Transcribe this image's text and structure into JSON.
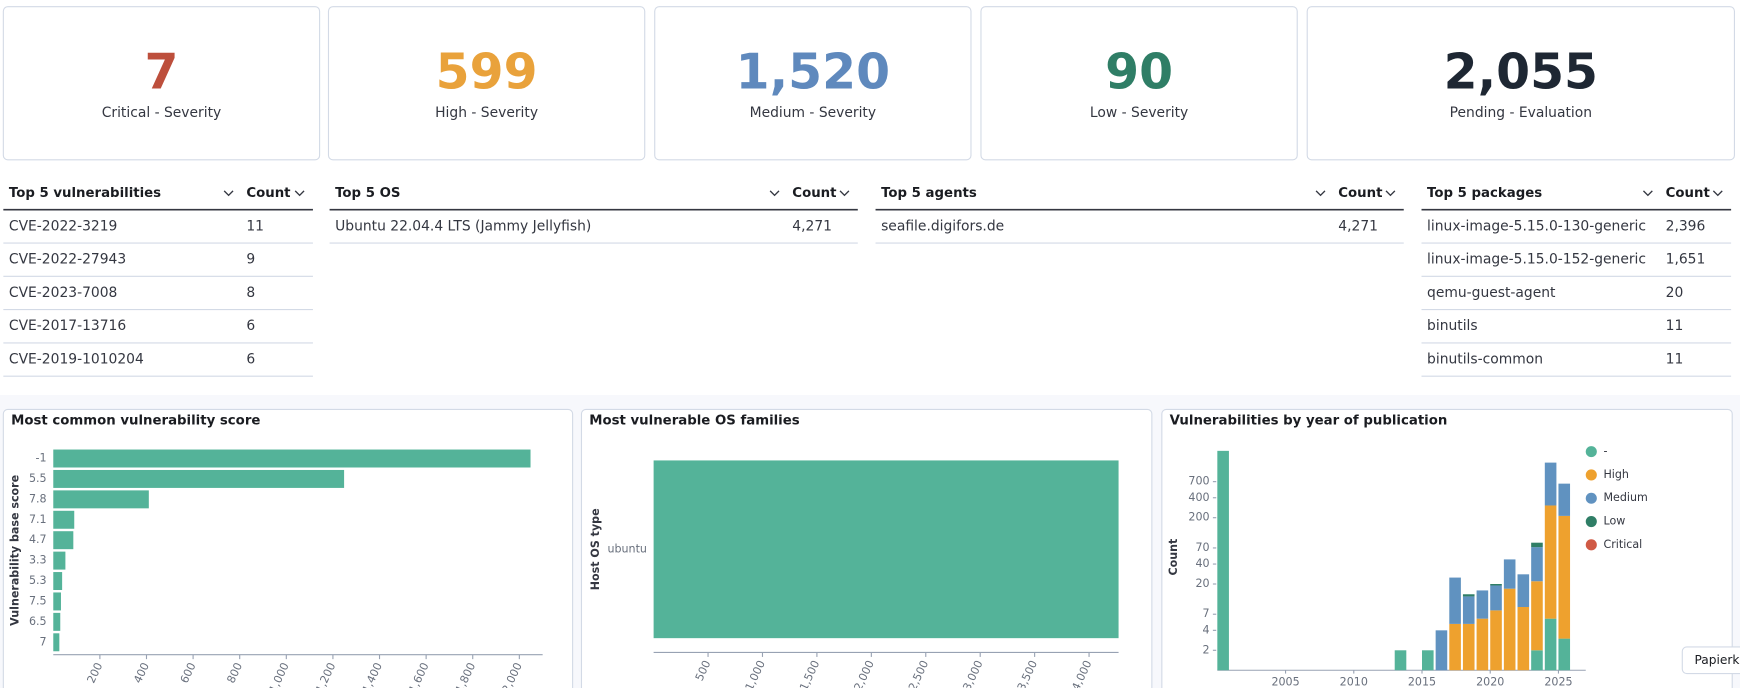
{
  "metrics": [
    {
      "value": "7",
      "label": "Critical - Severity",
      "color": "#bd4f3c"
    },
    {
      "value": "599",
      "label": "High - Severity",
      "color": "#e9a23b"
    },
    {
      "value": "1,520",
      "label": "Medium - Severity",
      "color": "#5f89bd"
    },
    {
      "value": "90",
      "label": "Low - Severity",
      "color": "#2f7e66"
    },
    {
      "value": "2,055",
      "label": "Pending - Evaluation",
      "color": "#1e2733"
    }
  ],
  "tables": [
    {
      "title": "Top 5 vulnerabilities",
      "count_header": "Count",
      "rows": [
        [
          "CVE-2022-3219",
          "11"
        ],
        [
          "CVE-2022-27943",
          "9"
        ],
        [
          "CVE-2023-7008",
          "8"
        ],
        [
          "CVE-2017-13716",
          "6"
        ],
        [
          "CVE-2019-1010204",
          "6"
        ]
      ]
    },
    {
      "title": "Top 5 OS",
      "count_header": "Count",
      "rows": [
        [
          "Ubuntu 22.04.4 LTS (Jammy Jellyfish)",
          "4,271"
        ]
      ]
    },
    {
      "title": "Top 5 agents",
      "count_header": "Count",
      "rows": [
        [
          "seafile.digifors.de",
          "4,271"
        ]
      ]
    },
    {
      "title": "Top 5 packages",
      "count_header": "Count",
      "rows": [
        [
          "linux-image-5.15.0-130-generic",
          "2,396"
        ],
        [
          "linux-image-5.15.0-152-generic",
          "1,651"
        ],
        [
          "qemu-guest-agent",
          "20"
        ],
        [
          "binutils",
          "11"
        ],
        [
          "binutils-common",
          "11"
        ]
      ]
    }
  ],
  "chart_data": [
    {
      "type": "bar",
      "orientation": "horizontal",
      "title": "Most common vulnerability score",
      "y_label": "Vulnerability base score",
      "categories": [
        "-1",
        "5.5",
        "7.8",
        "7.1",
        "4.7",
        "3.3",
        "5.3",
        "7.5",
        "6.5",
        "7"
      ],
      "values": [
        2048,
        1248,
        410,
        90,
        86,
        52,
        38,
        33,
        30,
        26
      ],
      "color": "#54b399",
      "xlim": [
        0,
        2100
      ],
      "xticks": [
        200,
        400,
        600,
        800,
        {
          "value": 1000,
          "label": "1,000"
        },
        {
          "value": 1200,
          "label": "1,200"
        },
        {
          "value": 1400,
          "label": "1,400"
        },
        {
          "value": 1600,
          "label": "1,600"
        },
        {
          "value": 1800,
          "label": "1,800"
        },
        {
          "value": 2000,
          "label": "2,000"
        }
      ]
    },
    {
      "type": "bar",
      "orientation": "horizontal",
      "title": "Most vulnerable OS families",
      "y_label": "Host OS type",
      "categories": [
        "ubuntu"
      ],
      "values": [
        4271
      ],
      "color": "#54b399",
      "xlim": [
        0,
        4271
      ],
      "xticks": [
        500,
        {
          "value": 1000,
          "label": "1,000"
        },
        {
          "value": 1500,
          "label": "1,500"
        },
        {
          "value": 2000,
          "label": "2,000"
        },
        {
          "value": 2500,
          "label": "2,500"
        },
        {
          "value": 3000,
          "label": "3,000"
        },
        {
          "value": 3500,
          "label": "3,500"
        },
        {
          "value": 4000,
          "label": "4,000"
        }
      ]
    },
    {
      "type": "bar",
      "stacked": true,
      "title": "Vulnerabilities by year of publication",
      "y_label": "Count",
      "x": [
        2000,
        2013,
        2015,
        2016,
        2017,
        2018,
        2019,
        2020,
        2021,
        2022,
        2023,
        2024,
        2025
      ],
      "xlim": [
        2000,
        2027
      ],
      "xticks": [
        2005,
        2010,
        2015,
        2020,
        2025
      ],
      "yscale": "log",
      "ylim": [
        1,
        2600
      ],
      "yticks": [
        2,
        4,
        7,
        20,
        40,
        70,
        200,
        400,
        700
      ],
      "legend": "top-right",
      "series": [
        {
          "name": "-",
          "color": "#54b399",
          "values": [
            2040,
            2,
            2,
            null,
            null,
            null,
            null,
            null,
            null,
            null,
            2,
            6,
            3
          ]
        },
        {
          "name": "High",
          "color": "#eea12e",
          "values": [
            null,
            null,
            null,
            null,
            5,
            5,
            6,
            8,
            17,
            9,
            20,
            300,
            210
          ]
        },
        {
          "name": "Medium",
          "color": "#6092c0",
          "values": [
            null,
            null,
            null,
            4,
            20,
            8,
            10,
            11,
            30,
            19,
            50,
            1050,
            440
          ]
        },
        {
          "name": "Low",
          "color": "#2f7e66",
          "values": [
            null,
            null,
            null,
            null,
            null,
            1,
            null,
            1,
            null,
            null,
            12,
            null,
            null
          ]
        },
        {
          "name": "Critical",
          "color": "#d05a45",
          "values": [
            null,
            null,
            null,
            null,
            null,
            null,
            null,
            null,
            null,
            null,
            null,
            null,
            null
          ]
        }
      ]
    }
  ],
  "tooltip": "Papierk"
}
